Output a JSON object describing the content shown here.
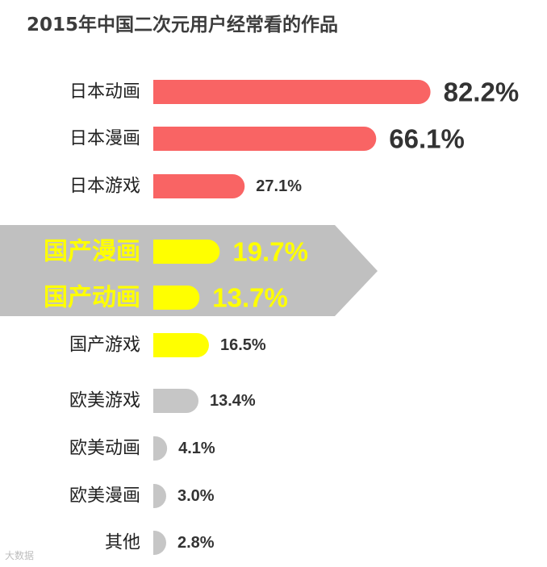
{
  "chart_data": {
    "type": "bar",
    "title": "2015年中国二次元用户经常看的作品",
    "categories": [
      "日本动画",
      "日本漫画",
      "日本游戏",
      "国产漫画",
      "国产动画",
      "国产游戏",
      "欧美游戏",
      "欧美动画",
      "欧美漫画",
      "其他"
    ],
    "values": [
      82.2,
      66.1,
      27.1,
      19.7,
      13.7,
      16.5,
      13.4,
      4.1,
      3.0,
      2.8
    ],
    "value_labels": [
      "82.2%",
      "66.1%",
      "27.1%",
      "19.7%",
      "13.7%",
      "16.5%",
      "13.4%",
      "4.1%",
      "3.0%",
      "2.8%"
    ],
    "bar_colors": [
      "#f96464",
      "#f96464",
      "#f96464",
      "#ffff00",
      "#ffff00",
      "#ffff00",
      "#c6c6c6",
      "#c6c6c6",
      "#c6c6c6",
      "#c6c6c6"
    ],
    "highlighted": [
      "国产漫画",
      "国产动画"
    ],
    "highlight_band_color": "#c0c0c0",
    "highlight_text_color": "#ffff00",
    "text_color": "#333333",
    "xlim": [
      0,
      100
    ],
    "grid": false,
    "legend": "none"
  },
  "watermark": "大数据"
}
